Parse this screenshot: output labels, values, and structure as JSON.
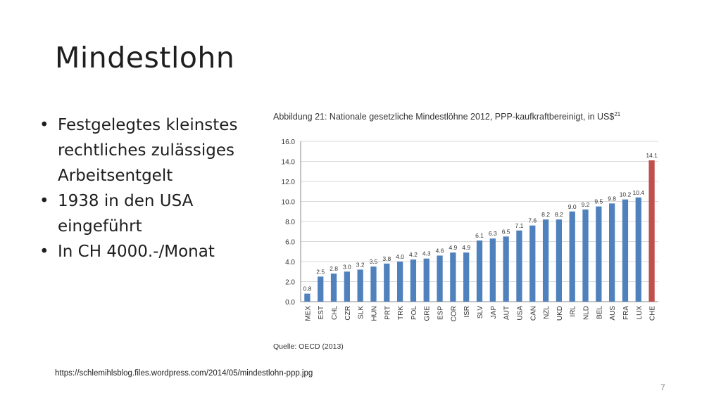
{
  "slide": {
    "title": "Mindestlohn",
    "bullets": [
      "Festgelegtes kleinstes rechtliches zulässiges Arbeitsentgelt",
      "1938 in den USA eingeführt",
      "In CH 4000.-/Monat"
    ],
    "source_url": "https://schlemihlsblog.files.wordpress.com/2014/05/mindestlohn-ppp.jpg",
    "page_number": "7"
  },
  "chart_data": {
    "type": "bar",
    "title": "Abbildung 21: Nationale gesetzliche Mindestlöhne 2012, PPP-kaufkraftbereinigt, in US$",
    "title_superscript": "21",
    "source": "Quelle: OECD (2013)",
    "categories": [
      "MEX",
      "EST",
      "CHL",
      "CZR",
      "SLK",
      "HUN",
      "PRT",
      "TRK",
      "POL",
      "GRE",
      "ESP",
      "COR",
      "ISR",
      "SLV",
      "JAP",
      "AUT",
      "USA",
      "CAN",
      "NZL",
      "UKD",
      "IRL",
      "NLD",
      "BEL",
      "AUS",
      "FRA",
      "LUX",
      "CHE"
    ],
    "values": [
      0.8,
      2.5,
      2.8,
      3.0,
      3.2,
      3.5,
      3.8,
      4.0,
      4.2,
      4.3,
      4.6,
      4.9,
      4.9,
      6.1,
      6.3,
      6.5,
      7.1,
      7.6,
      8.2,
      8.2,
      9.0,
      9.2,
      9.5,
      9.8,
      10.2,
      10.4,
      14.1
    ],
    "value_labels": [
      "0.8",
      "2.5",
      "2.8",
      "3.0",
      "3.2",
      "3.5",
      "3.8",
      "4.0",
      "4.2",
      "4.3",
      "4.6",
      "4.9",
      "4.9",
      "6.1",
      "6.3",
      "6.5",
      "7.1",
      "7.6",
      "8.2",
      "8.2",
      "9.0",
      "9.2",
      "9.5",
      "9.8",
      "10.2",
      "10.4",
      "14.1"
    ],
    "highlight_category": "CHE",
    "yticks": [
      "0.0",
      "2.0",
      "4.0",
      "6.0",
      "8.0",
      "10.0",
      "12.0",
      "14.0",
      "16.0"
    ],
    "ylim": [
      0,
      16
    ],
    "grid": true,
    "colors": {
      "bar": "#4f81bd",
      "highlight": "#c0504d",
      "grid": "#d9d9d9"
    }
  }
}
